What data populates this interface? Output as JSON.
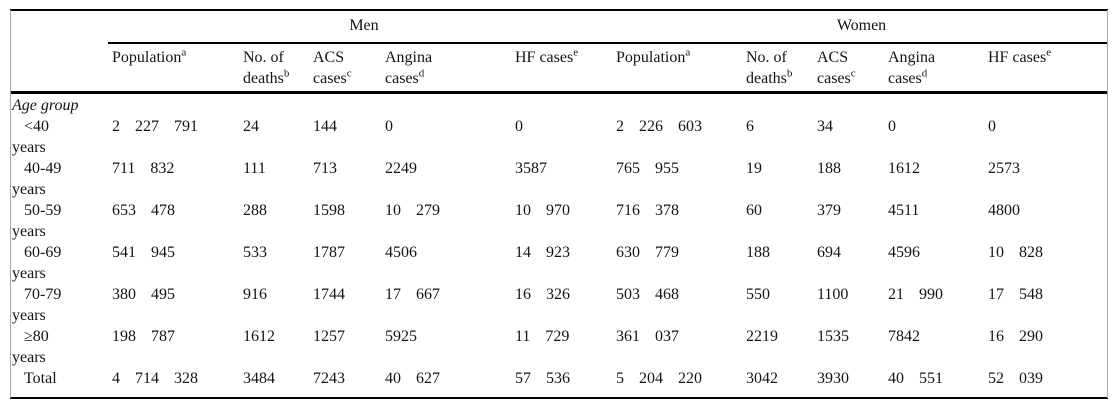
{
  "colors": {
    "rule": "#000000",
    "side_border": "#a8a8a8",
    "text": "#141414"
  },
  "table": {
    "groups": [
      {
        "label": "Men"
      },
      {
        "label": "Women"
      }
    ],
    "sub_columns": [
      {
        "line1": "Population",
        "line2": "",
        "sup": "a"
      },
      {
        "line1": "No. of",
        "line2": "deaths",
        "sup": "b"
      },
      {
        "line1": "ACS",
        "line2": "cases",
        "sup": "c"
      },
      {
        "line1": "Angina",
        "line2": "cases",
        "sup": "d"
      },
      {
        "line1": "HF cases",
        "line2": "",
        "sup": "e"
      }
    ],
    "section_label": "Age group",
    "rows": [
      {
        "label": "<40",
        "label2": "years",
        "men": [
          "2 227 791",
          "24",
          "144",
          "0",
          "0"
        ],
        "women": [
          "2 226 603",
          "6",
          "34",
          "0",
          "0"
        ]
      },
      {
        "label": "40-49",
        "label2": "years",
        "men": [
          "711 832",
          "111",
          "713",
          "2249",
          "3587"
        ],
        "women": [
          "765 955",
          "19",
          "188",
          "1612",
          "2573"
        ]
      },
      {
        "label": "50-59",
        "label2": "years",
        "men": [
          "653 478",
          "288",
          "1598",
          "10 279",
          "10 970"
        ],
        "women": [
          "716 378",
          "60",
          "379",
          "4511",
          "4800"
        ]
      },
      {
        "label": "60-69",
        "label2": "years",
        "men": [
          "541 945",
          "533",
          "1787",
          "4506",
          "14 923"
        ],
        "women": [
          "630 779",
          "188",
          "694",
          "4596",
          "10 828"
        ]
      },
      {
        "label": "70-79",
        "label2": "years",
        "men": [
          "380 495",
          "916",
          "1744",
          "17 667",
          "16 326"
        ],
        "women": [
          "503 468",
          "550",
          "1100",
          "21 990",
          "17 548"
        ]
      },
      {
        "label": "≥80",
        "label2": "years",
        "men": [
          "198 787",
          "1612",
          "1257",
          "5925",
          "11 729"
        ],
        "women": [
          "361 037",
          "2219",
          "1535",
          "7842",
          "16 290"
        ]
      },
      {
        "label": "Total",
        "label2": "",
        "men": [
          "4 714 328",
          "3484",
          "7243",
          "40 627",
          "57 536"
        ],
        "women": [
          "5 204 220",
          "3042",
          "3930",
          "40 551",
          "52 039"
        ]
      }
    ]
  }
}
